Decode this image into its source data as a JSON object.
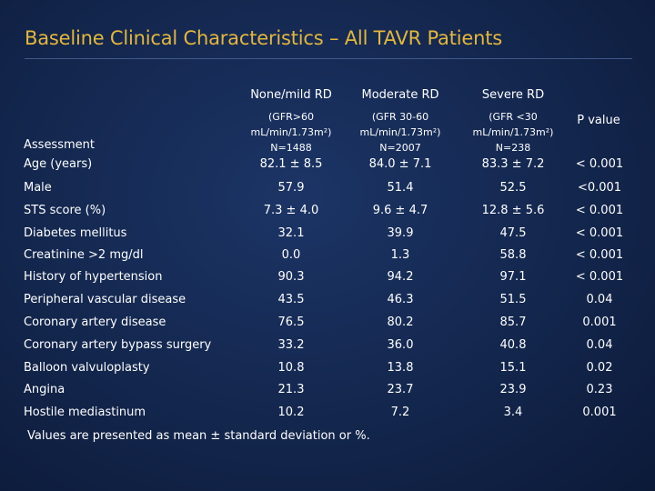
{
  "title": "Baseline Clinical Characteristics – All TAVR Patients",
  "columns": [
    {
      "name": "None/mild RD",
      "sub1": "(GFR>60",
      "sub2": "mL/min/1.73m²)",
      "sub3": "N=1488"
    },
    {
      "name": "Moderate RD",
      "sub1": "(GFR 30-60",
      "sub2": "mL/min/1.73m²)",
      "sub3": "N=2007"
    },
    {
      "name": "Severe RD",
      "sub1": "(GFR <30",
      "sub2": "mL/min/1.73m²)",
      "sub3": "N=238"
    }
  ],
  "pvalue_header": "P value",
  "assessment_header": "Assessment",
  "rows": [
    {
      "label": "Age (years)",
      "v1": "82.1 ± 8.5",
      "v2": "84.0 ± 7.1",
      "v3": "83.3 ± 7.2",
      "p": "< 0.001"
    },
    {
      "label": "Male",
      "v1": "57.9",
      "v2": "51.4",
      "v3": "52.5",
      "p": "<0.001"
    },
    {
      "label": "STS score (%)",
      "v1": "7.3 ± 4.0",
      "v2": "9.6 ± 4.7",
      "v3": "12.8 ± 5.6",
      "p": "< 0.001"
    },
    {
      "label": "Diabetes mellitus",
      "v1": "32.1",
      "v2": "39.9",
      "v3": "47.5",
      "p": "< 0.001"
    },
    {
      "label": "Creatinine >2 mg/dl",
      "v1": "0.0",
      "v2": "1.3",
      "v3": "58.8",
      "p": "< 0.001"
    },
    {
      "label": "History of hypertension",
      "v1": "90.3",
      "v2": "94.2",
      "v3": "97.1",
      "p": "< 0.001"
    },
    {
      "label": "Peripheral vascular disease",
      "v1": "43.5",
      "v2": "46.3",
      "v3": "51.5",
      "p": "0.04"
    },
    {
      "label": "Coronary artery disease",
      "v1": "76.5",
      "v2": "80.2",
      "v3": "85.7",
      "p": "0.001"
    },
    {
      "label": "Coronary artery bypass surgery",
      "v1": "33.2",
      "v2": "36.0",
      "v3": "40.8",
      "p": "0.04"
    },
    {
      "label": "Balloon valvuloplasty",
      "v1": "10.8",
      "v2": "13.8",
      "v3": "15.1",
      "p": "0.02"
    },
    {
      "label": "Angina",
      "v1": "21.3",
      "v2": "23.7",
      "v3": "23.9",
      "p": "0.23"
    },
    {
      "label": "Hostile mediastinum",
      "v1": "10.2",
      "v2": "7.2",
      "v3": "3.4",
      "p": "0.001"
    }
  ],
  "footnote": "Values are presented as mean ± standard deviation or %.",
  "colors": {
    "background": "#13264d",
    "title": "#e3b73b",
    "text": "#ffffff"
  }
}
